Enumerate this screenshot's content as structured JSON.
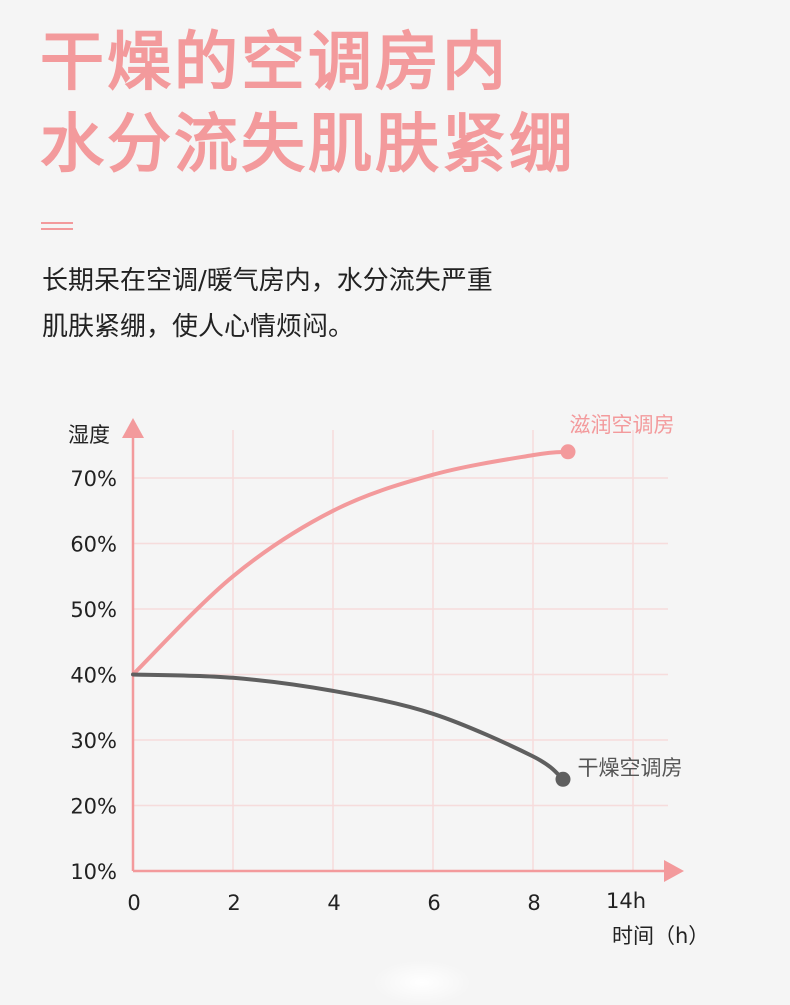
{
  "header": {
    "title_line1": "干燥的空调房内",
    "title_line2": "水分流失肌肤紧绷"
  },
  "description": {
    "line1": "长期呆在空调/暖气房内，水分流失严重",
    "line2": "肌肤紧绷，使人心情烦闷。"
  },
  "colors": {
    "accent": "#f39a9c",
    "dark_series": "#5f5f5f",
    "grid": "#f6dcdc",
    "background": "#f5f5f5"
  },
  "chart_data": {
    "type": "line",
    "ylabel": "湿度",
    "xlabel": "时间（h）",
    "x_ticks": [
      "0",
      "2",
      "4",
      "6",
      "8",
      "14h"
    ],
    "y_ticks": [
      "70%",
      "60%",
      "50%",
      "40%",
      "30%",
      "20%",
      "10%"
    ],
    "xlim": [
      0,
      10
    ],
    "ylim": [
      10,
      70
    ],
    "series": [
      {
        "name": "滋润空调房",
        "color": "#f39a9c",
        "points": [
          {
            "x": 0,
            "y": 40
          },
          {
            "x": 2,
            "y": 55
          },
          {
            "x": 4,
            "y": 65
          },
          {
            "x": 6,
            "y": 70.5
          },
          {
            "x": 8,
            "y": 73.5
          },
          {
            "x": 8.7,
            "y": 74
          }
        ]
      },
      {
        "name": "干燥空调房",
        "color": "#5f5f5f",
        "points": [
          {
            "x": 0,
            "y": 40
          },
          {
            "x": 2,
            "y": 39.5
          },
          {
            "x": 4,
            "y": 37.5
          },
          {
            "x": 6,
            "y": 34
          },
          {
            "x": 8,
            "y": 27.5
          },
          {
            "x": 8.6,
            "y": 24
          }
        ]
      }
    ]
  }
}
